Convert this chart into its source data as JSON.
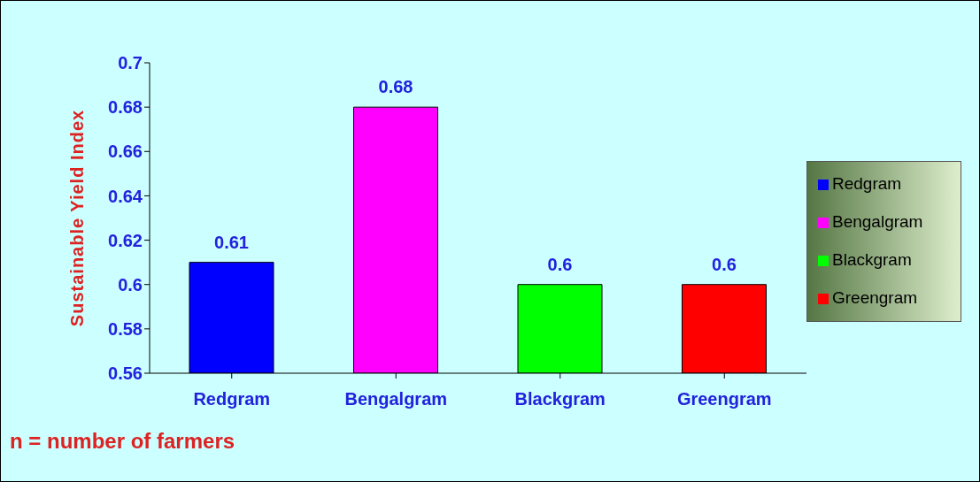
{
  "chart_data": {
    "type": "bar",
    "ylabel": "Sustainable Yield Index",
    "categories": [
      "Redgram",
      "Bengalgram",
      "Blackgram",
      "Greengram"
    ],
    "stacked": true,
    "series": [
      {
        "name": "Redgram",
        "color": "#0000ff",
        "values": [
          0.61,
          null,
          null,
          null
        ]
      },
      {
        "name": "Bengalgram",
        "color": "#ff00ff",
        "values": [
          null,
          0.68,
          null,
          null
        ]
      },
      {
        "name": "Blackgram",
        "color": "#00ff00",
        "values": [
          null,
          null,
          0.6,
          null
        ]
      },
      {
        "name": "Greengram",
        "color": "#ff0000",
        "values": [
          null,
          null,
          null,
          0.6
        ]
      }
    ],
    "ylim": [
      0.56,
      0.7
    ],
    "yticks": [
      0.56,
      0.58,
      0.6,
      0.62,
      0.64,
      0.66,
      0.68,
      0.7
    ],
    "data_labels": true,
    "legend": "right",
    "grid": false,
    "annotations": [
      "n = number of farmers"
    ]
  }
}
